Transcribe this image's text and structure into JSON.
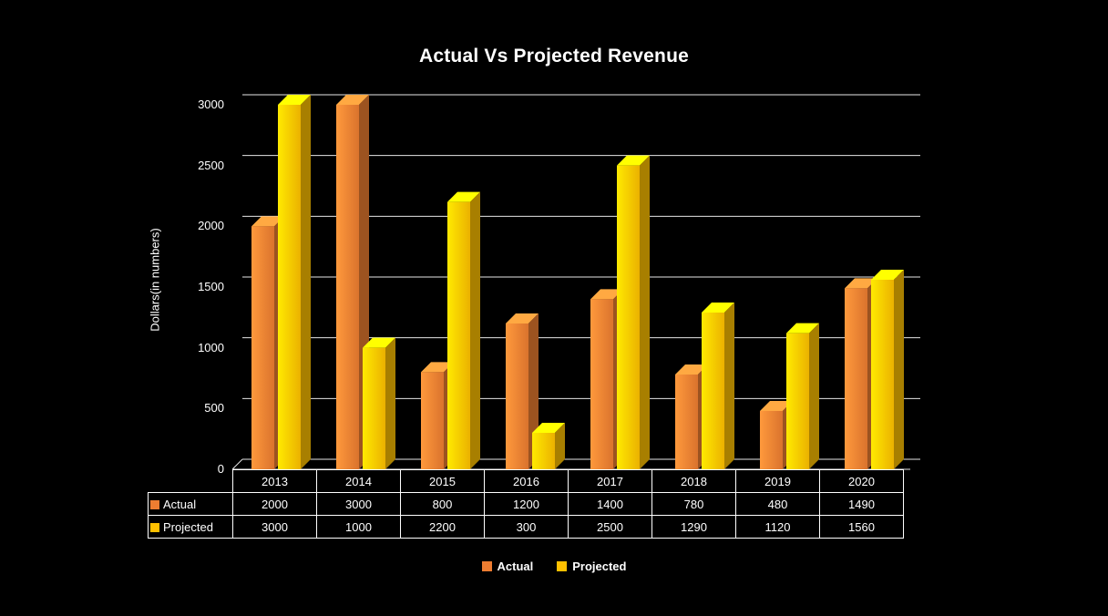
{
  "page": {
    "background": "#000000",
    "text_color": "#FFFFFF"
  },
  "chart_data": {
    "type": "bar",
    "style": "3d-clustered-column",
    "title": "Actual Vs Projected Revenue",
    "ylabel": "Dollars(in numbers)",
    "categories": [
      "2013",
      "2014",
      "2015",
      "2016",
      "2017",
      "2018",
      "2019",
      "2020"
    ],
    "series": [
      {
        "name": "Actual",
        "color": "#ED7D31",
        "values": [
          2000,
          3000,
          800,
          1200,
          1400,
          780,
          480,
          1490
        ]
      },
      {
        "name": "Projected",
        "color": "#FFC000",
        "values": [
          3000,
          1000,
          2200,
          300,
          2500,
          1290,
          1120,
          1560
        ]
      }
    ],
    "ylim": [
      0,
      3000
    ],
    "yticks": [
      0,
      500,
      1000,
      1500,
      2000,
      2500,
      3000
    ],
    "grid": true,
    "gridline_color": "#E6E6E6",
    "legend_position": "bottom",
    "data_table": true
  }
}
